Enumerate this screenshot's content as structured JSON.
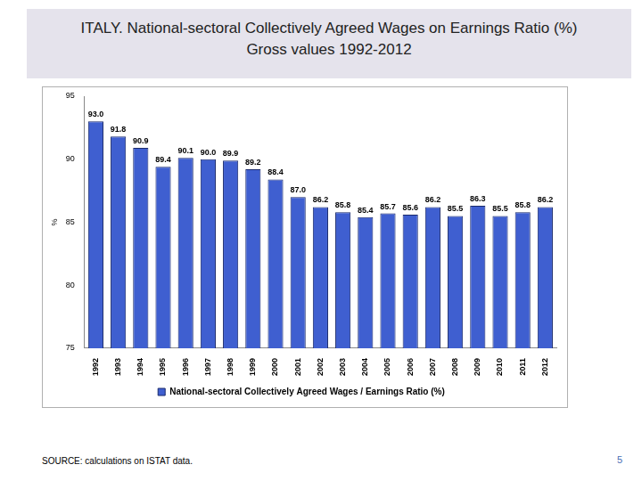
{
  "chart_data": {
    "type": "bar",
    "title": "ITALY. National-sectoral Collectively Agreed Wages on Earnings Ratio (%)",
    "subtitle": "Gross values 1992-2012",
    "y_label": "%",
    "categories": [
      "1992",
      "1993",
      "1994",
      "1995",
      "1996",
      "1997",
      "1998",
      "1999",
      "2000",
      "2001",
      "2002",
      "2003",
      "2004",
      "2005",
      "2006",
      "2007",
      "2008",
      "2009",
      "2010",
      "2011",
      "2012"
    ],
    "series": [
      {
        "name": "National-sectoral Collectively Agreed Wages / Earnings Ratio (%)",
        "color": "#3f5fd0",
        "values": [
          93.0,
          91.8,
          90.9,
          89.4,
          90.1,
          90.0,
          89.9,
          89.2,
          88.4,
          87.0,
          86.2,
          85.8,
          85.4,
          85.7,
          85.6,
          86.2,
          85.5,
          86.3,
          85.5,
          85.8,
          86.2
        ],
        "value_labels": [
          "93.0",
          "91.8",
          "90.9",
          "89.4",
          "90.1",
          "90.0",
          "89.9",
          "89.2",
          "88.4",
          "87.0",
          "86.2",
          "85.8",
          "85.4",
          "85.7",
          "85.6",
          "86.2",
          "85.5",
          "86.3",
          "85.5",
          "85.8",
          "86.2"
        ]
      }
    ],
    "ylim": [
      75,
      95
    ],
    "yticks": [
      75,
      80,
      85,
      90,
      95
    ],
    "grid": false,
    "legend": "bottom",
    "data_labels": true
  },
  "source": "SOURCE: calculations on ISTAT data.",
  "page": 5
}
